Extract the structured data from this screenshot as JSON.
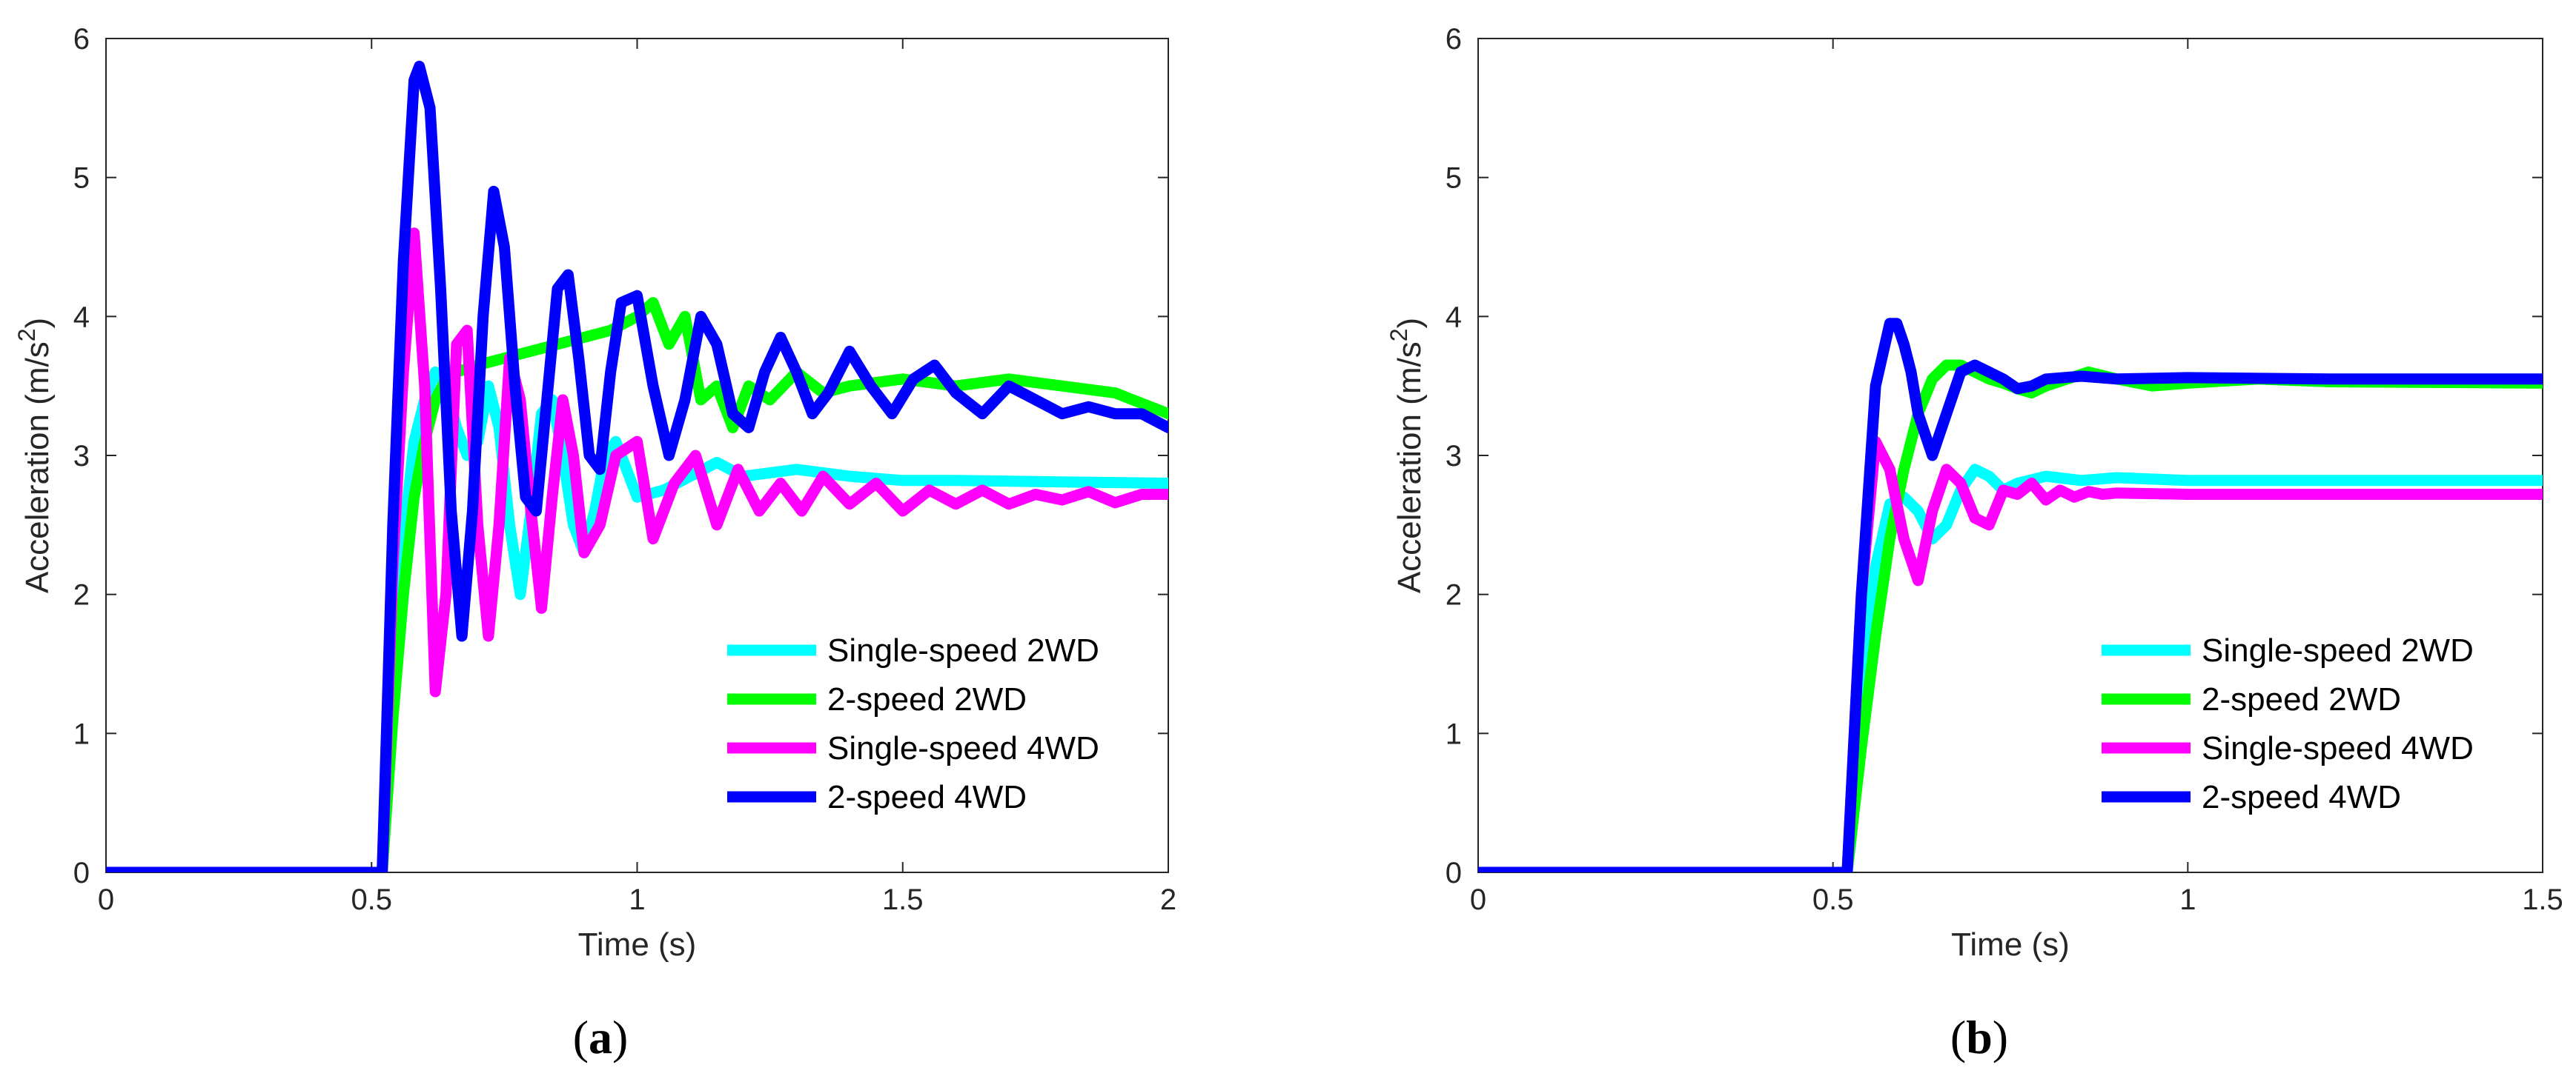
{
  "colors": {
    "cyan": "#00ffff",
    "green": "#00ff00",
    "magenta": "#ff00ff",
    "blue": "#0000ff",
    "axis": "#262626"
  },
  "chart_data": [
    {
      "type": "line",
      "caption_letter": "a",
      "caption_open": "(",
      "caption_close": ")",
      "xlabel": "Time (s)",
      "ylabel_main": "Acceleration (m/s",
      "ylabel_sup": "2",
      "ylabel_end": ")",
      "xlim": [
        0,
        2
      ],
      "ylim": [
        0,
        6
      ],
      "xticks": [
        0,
        0.5,
        1,
        1.5,
        2
      ],
      "xtick_labels": [
        "0",
        "0.5",
        "1",
        "1.5",
        "2"
      ],
      "yticks": [
        0,
        1,
        2,
        3,
        4,
        5,
        6
      ],
      "ytick_labels": [
        "0",
        "1",
        "2",
        "3",
        "4",
        "5",
        "6"
      ],
      "legend_position": "bottom-right",
      "series": [
        {
          "name": "Single-speed 2WD",
          "color": "#00ffff",
          "x": [
            0,
            0.52,
            0.54,
            0.56,
            0.58,
            0.6,
            0.62,
            0.64,
            0.66,
            0.68,
            0.7,
            0.72,
            0.74,
            0.76,
            0.78,
            0.8,
            0.82,
            0.84,
            0.86,
            0.88,
            0.9,
            0.92,
            0.94,
            0.96,
            0.98,
            1.0,
            1.05,
            1.1,
            1.15,
            1.2,
            1.3,
            1.4,
            1.5,
            1.6,
            1.8,
            2.0
          ],
          "y": [
            0,
            0,
            1.3,
            2.4,
            3.1,
            3.4,
            3.6,
            3.5,
            3.2,
            3.0,
            3.1,
            3.5,
            3.2,
            2.5,
            2.0,
            2.6,
            3.3,
            3.4,
            3.0,
            2.5,
            2.3,
            2.6,
            3.0,
            3.1,
            2.9,
            2.7,
            2.75,
            2.85,
            2.95,
            2.85,
            2.9,
            2.85,
            2.82,
            2.82,
            2.81,
            2.8
          ]
        },
        {
          "name": "2-speed 2WD",
          "color": "#00ff00",
          "x": [
            0,
            0.52,
            0.54,
            0.56,
            0.58,
            0.6,
            0.62,
            0.64,
            0.66,
            0.7,
            0.75,
            0.8,
            0.85,
            0.9,
            0.95,
            1.0,
            1.03,
            1.06,
            1.09,
            1.12,
            1.15,
            1.18,
            1.21,
            1.25,
            1.3,
            1.35,
            1.4,
            1.5,
            1.6,
            1.7,
            1.8,
            1.9,
            2.0
          ],
          "y": [
            0,
            0,
            1.1,
            2.0,
            2.7,
            3.1,
            3.4,
            3.55,
            3.6,
            3.65,
            3.7,
            3.75,
            3.8,
            3.85,
            3.9,
            4.0,
            4.1,
            3.8,
            4.0,
            3.4,
            3.5,
            3.2,
            3.5,
            3.4,
            3.6,
            3.45,
            3.5,
            3.55,
            3.5,
            3.55,
            3.5,
            3.45,
            3.3
          ]
        },
        {
          "name": "Single-speed 4WD",
          "color": "#ff00ff",
          "x": [
            0,
            0.52,
            0.54,
            0.56,
            0.58,
            0.6,
            0.62,
            0.64,
            0.66,
            0.68,
            0.7,
            0.72,
            0.74,
            0.76,
            0.78,
            0.8,
            0.82,
            0.84,
            0.86,
            0.88,
            0.9,
            0.93,
            0.96,
            1.0,
            1.03,
            1.07,
            1.11,
            1.15,
            1.19,
            1.23,
            1.27,
            1.31,
            1.35,
            1.4,
            1.45,
            1.5,
            1.55,
            1.6,
            1.65,
            1.7,
            1.75,
            1.8,
            1.85,
            1.9,
            1.95,
            2.0
          ],
          "y": [
            0,
            0,
            2.2,
            3.6,
            4.6,
            3.5,
            1.3,
            2.0,
            3.8,
            3.9,
            2.5,
            1.7,
            2.5,
            3.7,
            3.4,
            2.6,
            1.9,
            2.7,
            3.4,
            3.0,
            2.3,
            2.5,
            3.0,
            3.1,
            2.4,
            2.8,
            3.0,
            2.5,
            2.9,
            2.6,
            2.8,
            2.6,
            2.85,
            2.65,
            2.8,
            2.6,
            2.75,
            2.65,
            2.75,
            2.65,
            2.72,
            2.68,
            2.74,
            2.66,
            2.72,
            2.72
          ]
        },
        {
          "name": "2-speed 4WD",
          "color": "#0000ff",
          "x": [
            0,
            0.52,
            0.54,
            0.56,
            0.58,
            0.59,
            0.61,
            0.63,
            0.65,
            0.67,
            0.69,
            0.71,
            0.73,
            0.75,
            0.77,
            0.79,
            0.81,
            0.83,
            0.85,
            0.87,
            0.89,
            0.91,
            0.93,
            0.95,
            0.97,
            1.0,
            1.03,
            1.06,
            1.09,
            1.12,
            1.15,
            1.18,
            1.21,
            1.24,
            1.27,
            1.3,
            1.33,
            1.36,
            1.4,
            1.44,
            1.48,
            1.52,
            1.56,
            1.6,
            1.65,
            1.7,
            1.75,
            1.8,
            1.85,
            1.9,
            1.95,
            2.0
          ],
          "y": [
            0,
            0,
            2.5,
            4.4,
            5.7,
            5.8,
            5.5,
            4.2,
            2.6,
            1.7,
            2.6,
            4.0,
            4.9,
            4.5,
            3.5,
            2.7,
            2.6,
            3.4,
            4.2,
            4.3,
            3.7,
            3.0,
            2.9,
            3.6,
            4.1,
            4.15,
            3.5,
            3.0,
            3.4,
            4.0,
            3.8,
            3.3,
            3.2,
            3.6,
            3.85,
            3.6,
            3.3,
            3.45,
            3.75,
            3.5,
            3.3,
            3.55,
            3.65,
            3.45,
            3.3,
            3.5,
            3.4,
            3.3,
            3.35,
            3.3,
            3.3,
            3.2
          ]
        }
      ]
    },
    {
      "type": "line",
      "caption_letter": "b",
      "caption_open": "(",
      "caption_close": ")",
      "xlabel": "Time (s)",
      "ylabel_main": "Acceleration (m/s",
      "ylabel_sup": "2",
      "ylabel_end": ")",
      "xlim": [
        0,
        1.5
      ],
      "ylim": [
        0,
        6
      ],
      "xticks": [
        0,
        0.5,
        1,
        1.5
      ],
      "xtick_labels": [
        "0",
        "0.5",
        "1",
        "1.5"
      ],
      "yticks": [
        0,
        1,
        2,
        3,
        4,
        5,
        6
      ],
      "ytick_labels": [
        "0",
        "1",
        "2",
        "3",
        "4",
        "5",
        "6"
      ],
      "legend_position": "bottom-right",
      "series": [
        {
          "name": "Single-speed 2WD",
          "color": "#00ffff",
          "x": [
            0,
            0.52,
            0.54,
            0.56,
            0.58,
            0.6,
            0.62,
            0.64,
            0.66,
            0.68,
            0.7,
            0.72,
            0.74,
            0.76,
            0.8,
            0.85,
            0.9,
            1.0,
            1.2,
            1.5
          ],
          "y": [
            0,
            0,
            1.3,
            2.2,
            2.65,
            2.7,
            2.6,
            2.4,
            2.5,
            2.75,
            2.9,
            2.85,
            2.75,
            2.8,
            2.85,
            2.82,
            2.84,
            2.82,
            2.82,
            2.82
          ]
        },
        {
          "name": "2-speed 2WD",
          "color": "#00ff00",
          "x": [
            0,
            0.52,
            0.54,
            0.56,
            0.58,
            0.6,
            0.62,
            0.64,
            0.66,
            0.68,
            0.7,
            0.72,
            0.74,
            0.76,
            0.78,
            0.8,
            0.83,
            0.86,
            0.9,
            0.95,
            1.0,
            1.1,
            1.2,
            1.5
          ],
          "y": [
            0,
            0,
            0.9,
            1.7,
            2.4,
            2.9,
            3.3,
            3.55,
            3.65,
            3.65,
            3.6,
            3.55,
            3.52,
            3.48,
            3.45,
            3.5,
            3.55,
            3.6,
            3.55,
            3.5,
            3.52,
            3.55,
            3.53,
            3.52
          ]
        },
        {
          "name": "Single-speed 4WD",
          "color": "#ff00ff",
          "x": [
            0,
            0.52,
            0.54,
            0.56,
            0.58,
            0.6,
            0.62,
            0.64,
            0.66,
            0.68,
            0.7,
            0.72,
            0.74,
            0.76,
            0.78,
            0.8,
            0.82,
            0.84,
            0.86,
            0.88,
            0.9,
            1.0,
            1.2,
            1.5
          ],
          "y": [
            0,
            0,
            2.0,
            3.1,
            2.9,
            2.4,
            2.1,
            2.6,
            2.9,
            2.8,
            2.55,
            2.5,
            2.75,
            2.72,
            2.8,
            2.68,
            2.75,
            2.7,
            2.74,
            2.72,
            2.73,
            2.72,
            2.72,
            2.72
          ]
        },
        {
          "name": "2-speed 4WD",
          "color": "#0000ff",
          "x": [
            0,
            0.52,
            0.54,
            0.56,
            0.58,
            0.59,
            0.6,
            0.61,
            0.62,
            0.64,
            0.66,
            0.68,
            0.7,
            0.72,
            0.74,
            0.76,
            0.78,
            0.8,
            0.85,
            0.9,
            1.0,
            1.2,
            1.5
          ],
          "y": [
            0,
            0,
            2.0,
            3.5,
            3.95,
            3.95,
            3.8,
            3.6,
            3.3,
            3.0,
            3.3,
            3.6,
            3.65,
            3.6,
            3.55,
            3.48,
            3.5,
            3.55,
            3.57,
            3.55,
            3.56,
            3.55,
            3.55
          ]
        }
      ]
    }
  ]
}
